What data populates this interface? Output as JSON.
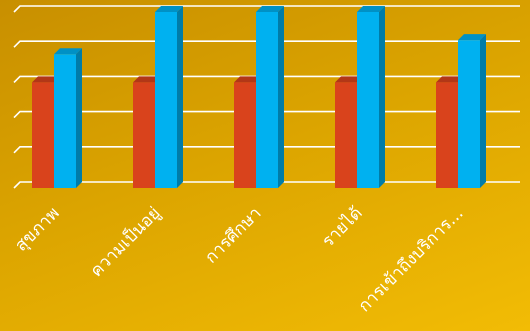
{
  "chart_data": {
    "type": "bar",
    "bar_style": "3d-clustered-column",
    "categories": [
      "สุขภาพ",
      "ความเป็นอยู่",
      "การศึกษา",
      "รายได้",
      "การเข้าถึงบริการ..."
    ],
    "series": [
      {
        "values": [
          3.0,
          3.0,
          3.0,
          3.0,
          3.0
        ],
        "color": "#d9431c"
      },
      {
        "values": [
          3.8,
          5.0,
          5.0,
          5.0,
          4.2
        ],
        "color": "#00b1f0"
      }
    ],
    "ylim": [
      0,
      5
    ],
    "grid": true,
    "gridline_color": "#ffffff",
    "background_color": "#dba400"
  }
}
